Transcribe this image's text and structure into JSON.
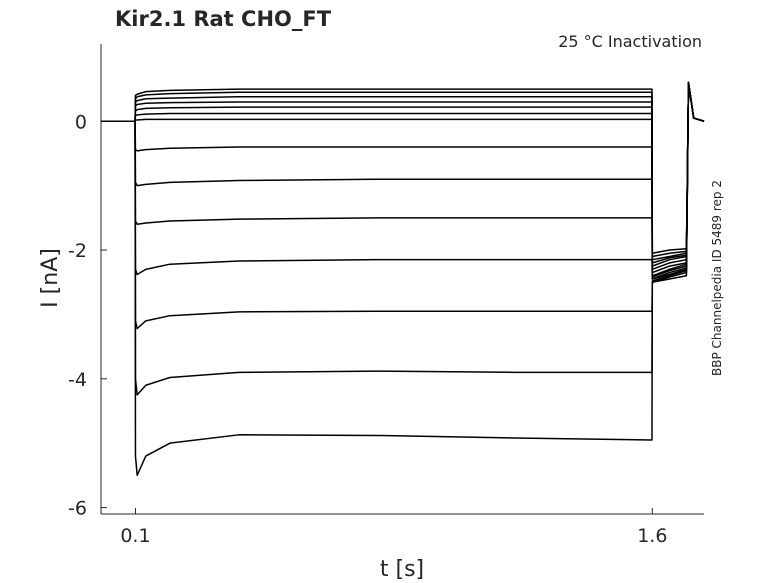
{
  "chart_data": {
    "type": "line",
    "title": "Kir2.1  Rat  CHO_FT",
    "subtitle": "25 °C  Inactivation",
    "side_note": "BBP Channelpedia ID 5489 rep 2",
    "xlabel": "t [s]",
    "ylabel": "I [nA]",
    "xlim": [
      0,
      1.75
    ],
    "ylim": [
      -6.1,
      1.2
    ],
    "xticks": [
      0.1,
      1.6
    ],
    "yticks": [
      0,
      -2,
      -4,
      -6
    ],
    "color": "#000000",
    "x": [
      0,
      0.099,
      0.1,
      0.105,
      0.13,
      0.2,
      0.4,
      0.8,
      1.2,
      1.599,
      1.6,
      1.65,
      1.699,
      1.705,
      1.72,
      1.75
    ],
    "series": [
      {
        "values": [
          0,
          0,
          0.4,
          0.42,
          0.46,
          0.48,
          0.5,
          0.5,
          0.5,
          0.5,
          -2.05,
          -2.0,
          -1.98,
          0.6,
          0.05,
          0
        ]
      },
      {
        "values": [
          0,
          0,
          0.35,
          0.38,
          0.41,
          0.43,
          0.45,
          0.45,
          0.45,
          0.45,
          -2.1,
          -2.05,
          -2.02,
          0.6,
          0.05,
          0
        ]
      },
      {
        "values": [
          0,
          0,
          0.3,
          0.32,
          0.35,
          0.36,
          0.38,
          0.38,
          0.38,
          0.38,
          -2.15,
          -2.1,
          -2.05,
          0.6,
          0.05,
          0
        ]
      },
      {
        "values": [
          0,
          0,
          0.24,
          0.26,
          0.28,
          0.29,
          0.3,
          0.3,
          0.3,
          0.3,
          -2.2,
          -2.12,
          -2.08,
          0.6,
          0.05,
          0
        ]
      },
      {
        "values": [
          0,
          0,
          0.16,
          0.18,
          0.2,
          0.21,
          0.22,
          0.22,
          0.22,
          0.22,
          -2.25,
          -2.15,
          -2.1,
          0.6,
          0.05,
          0
        ]
      },
      {
        "values": [
          0,
          0,
          0.09,
          0.1,
          0.11,
          0.12,
          0.12,
          0.12,
          0.12,
          0.12,
          -2.3,
          -2.2,
          -2.15,
          0.6,
          0.05,
          0
        ]
      },
      {
        "values": [
          0,
          0,
          0.02,
          0.02,
          0.03,
          0.03,
          0.03,
          0.03,
          0.03,
          0.03,
          -2.35,
          -2.25,
          -2.2,
          0.6,
          0.05,
          0
        ]
      },
      {
        "values": [
          0,
          0,
          -0.44,
          -0.46,
          -0.44,
          -0.42,
          -0.4,
          -0.4,
          -0.4,
          -0.4,
          -2.4,
          -2.3,
          -2.22,
          0.6,
          0.05,
          0
        ]
      },
      {
        "values": [
          0,
          0,
          -0.95,
          -1.0,
          -0.98,
          -0.95,
          -0.92,
          -0.9,
          -0.9,
          -0.9,
          -2.42,
          -2.32,
          -2.25,
          0.6,
          0.05,
          0
        ]
      },
      {
        "values": [
          0,
          0,
          -1.55,
          -1.6,
          -1.58,
          -1.55,
          -1.52,
          -1.5,
          -1.5,
          -1.5,
          -2.45,
          -2.35,
          -2.28,
          0.6,
          0.05,
          0
        ]
      },
      {
        "values": [
          0,
          0,
          -2.3,
          -2.38,
          -2.3,
          -2.22,
          -2.17,
          -2.15,
          -2.15,
          -2.15,
          -2.45,
          -2.38,
          -2.3,
          0.6,
          0.05,
          0
        ]
      },
      {
        "values": [
          0,
          0,
          -3.1,
          -3.22,
          -3.1,
          -3.02,
          -2.96,
          -2.95,
          -2.95,
          -2.95,
          -2.48,
          -2.4,
          -2.32,
          0.6,
          0.05,
          0
        ]
      },
      {
        "values": [
          0,
          0,
          -4.0,
          -4.25,
          -4.1,
          -3.98,
          -3.9,
          -3.88,
          -3.9,
          -3.9,
          -2.5,
          -2.42,
          -2.35,
          0.6,
          0.05,
          0
        ]
      },
      {
        "values": [
          0,
          0,
          -5.2,
          -5.5,
          -5.2,
          -5.0,
          -4.87,
          -4.88,
          -4.92,
          -4.95,
          -2.5,
          -2.45,
          -2.4,
          0.6,
          0.05,
          0
        ]
      }
    ]
  }
}
